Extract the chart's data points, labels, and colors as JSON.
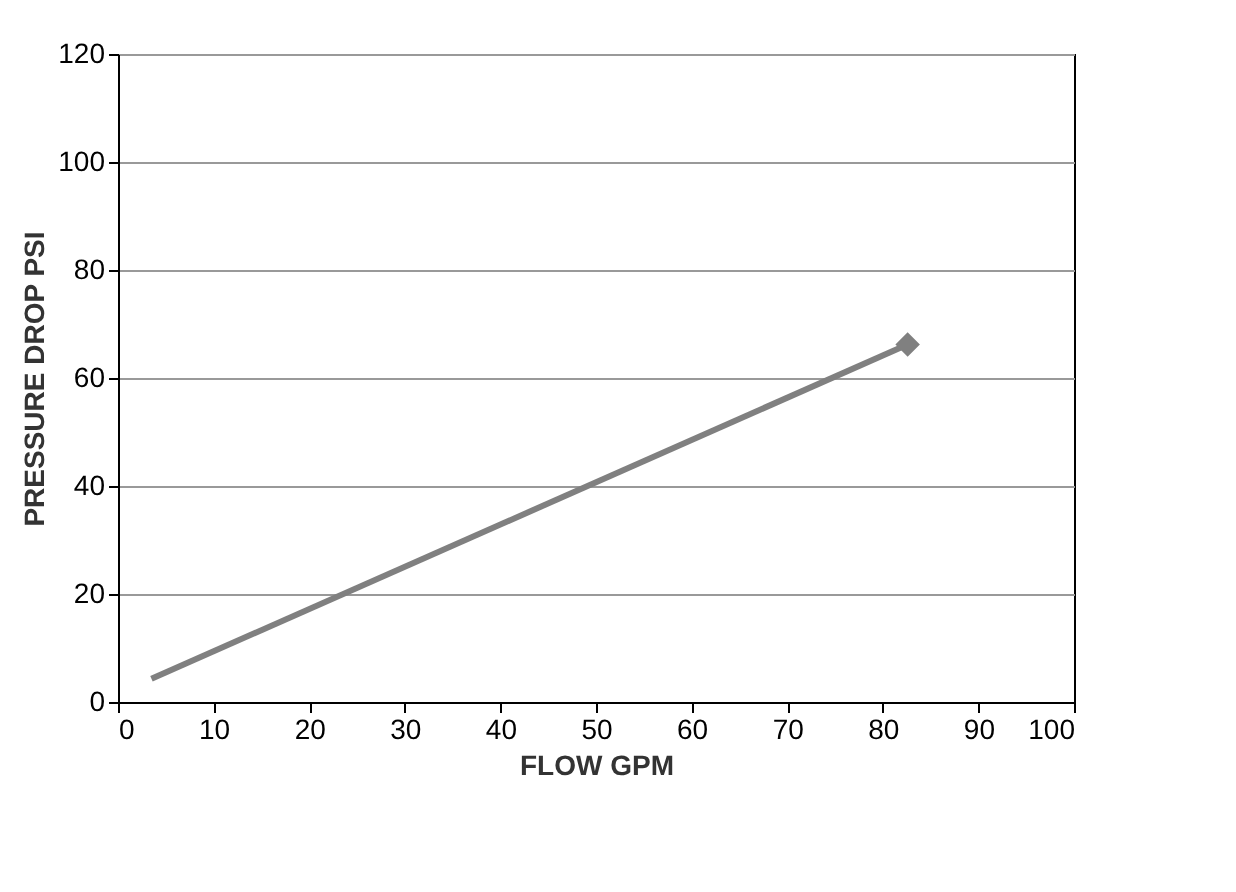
{
  "chart_data": {
    "type": "line",
    "xlabel": "FLOW GPM",
    "ylabel": "PRESSURE DROP PSI",
    "xlim": [
      0,
      100
    ],
    "xticks": [
      0,
      10,
      20,
      30,
      40,
      50,
      60,
      70,
      80,
      90,
      100
    ],
    "ylim": [
      0,
      120
    ],
    "yticks": [
      0,
      20,
      40,
      60,
      80,
      100,
      120
    ],
    "grid": "y",
    "x": [
      3.5,
      82.6
    ],
    "series": [
      {
        "color": "#808080",
        "values": [
          4.3,
          66.2
        ],
        "marker": "none",
        "line_style": "solid"
      },
      {
        "type": "scatter",
        "color": "#808080",
        "values": [
          null,
          66.2
        ],
        "marker": "diamond"
      }
    ]
  }
}
